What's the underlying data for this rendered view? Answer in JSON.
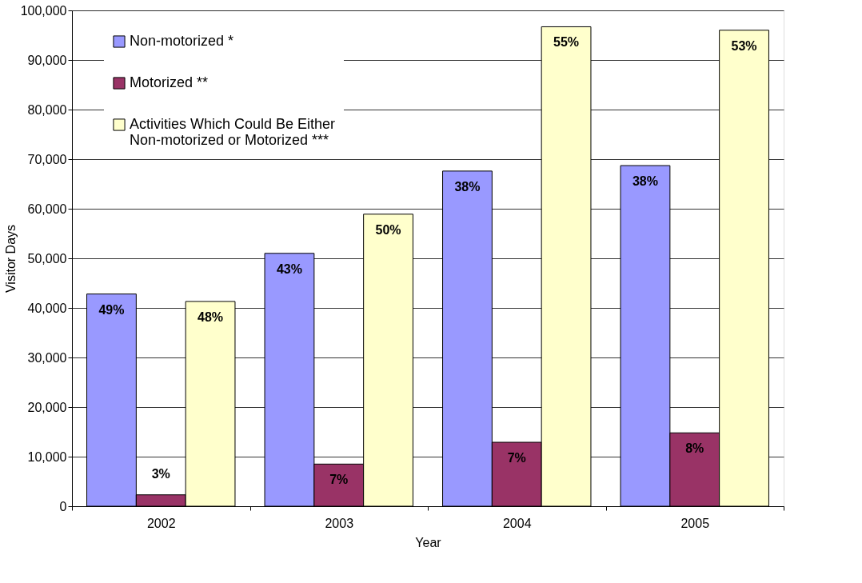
{
  "chart_data": {
    "type": "bar",
    "xlabel": "Year",
    "ylabel": "Visitor Days",
    "categories": [
      "2002",
      "2003",
      "2004",
      "2005"
    ],
    "series": [
      {
        "name": "Non-motorized *",
        "color": "#9999ff",
        "values": [
          42800,
          51000,
          67600,
          68700
        ]
      },
      {
        "name": "Motorized **",
        "color": "#993366",
        "values": [
          2300,
          8500,
          12900,
          14800
        ]
      },
      {
        "name": "Activities Which Could Be Either\nNon-motorized or Motorized ***",
        "color": "#ffffcc",
        "values": [
          41300,
          58900,
          96700,
          96000
        ]
      }
    ],
    "annotations": [
      "49%",
      "3%",
      "48%",
      "43%",
      "7%",
      "50%",
      "38%",
      "7%",
      "55%",
      "38%",
      "8%",
      "53%"
    ],
    "ylim": [
      0,
      100000
    ],
    "yticks": [
      0,
      {
        "value": 10000,
        "label": "10,000"
      },
      {
        "value": 20000,
        "label": "20,000"
      },
      {
        "value": 30000,
        "label": "30,000"
      },
      {
        "value": 40000,
        "label": "40,000"
      },
      {
        "value": 50000,
        "label": "50,000"
      },
      {
        "value": 60000,
        "label": "60,000"
      },
      {
        "value": 70000,
        "label": "70,000"
      },
      {
        "value": 80000,
        "label": "80,000"
      },
      {
        "value": 90000,
        "label": "90,000"
      },
      {
        "value": 100000,
        "label": "100,000"
      }
    ],
    "grid": "y",
    "legend": "top left"
  }
}
